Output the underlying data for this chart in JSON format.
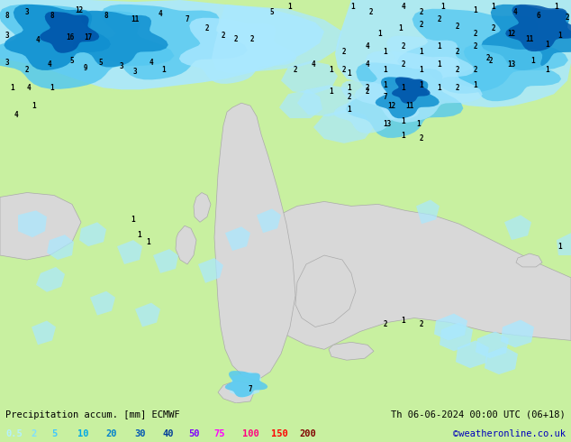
{
  "title_left": "Precipitation accum. [mm] ECMWF",
  "title_right": "Th 06-06-2024 00:00 UTC (06+18)",
  "credit": "©weatheronline.co.uk",
  "colorbar_labels": [
    "0.5",
    "2",
    "5",
    "10",
    "20",
    "30",
    "40",
    "50",
    "75",
    "100",
    "150",
    "200"
  ],
  "colorbar_colors": [
    "#b3f0ff",
    "#80dfff",
    "#40c8ff",
    "#00a8e6",
    "#0080cc",
    "#0055b3",
    "#003d99",
    "#8000ff",
    "#ff00ff",
    "#ff0080",
    "#ff0000",
    "#800000"
  ],
  "bg_color": "#c8f0a0",
  "land_gray_color": "#d8d8d8",
  "sea_color": "#c8f0a0",
  "bottom_bar_color": "#e0f0d0",
  "text_color": "#000000",
  "credit_color": "#0000bb",
  "fig_width": 6.34,
  "fig_height": 4.9,
  "precip_light": "#aae8ff",
  "precip_mid": "#55c8f0",
  "precip_dark": "#1090d0",
  "precip_darker": "#0055aa"
}
